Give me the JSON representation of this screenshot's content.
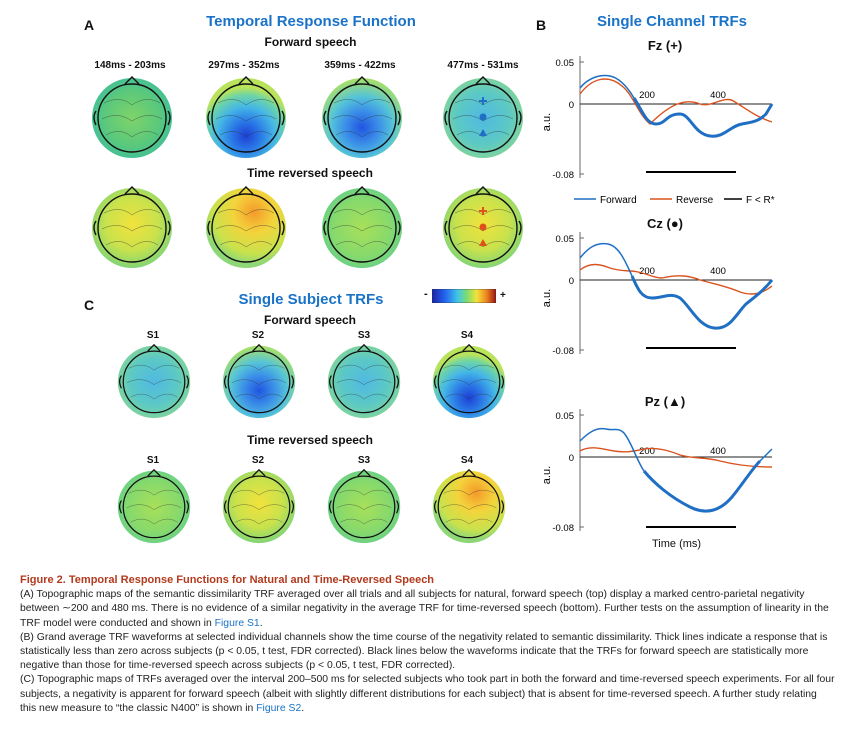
{
  "panel_a": {
    "letter": "A",
    "title": "Temporal Response Function",
    "forward_label": "Forward speech",
    "reversed_label": "Time reversed speech",
    "time_windows": [
      "148ms - 203ms",
      "297ms - 352ms",
      "359ms - 422ms",
      "477ms - 531ms"
    ],
    "colorbar": {
      "min_label": "-",
      "max_label": "+"
    }
  },
  "panel_b": {
    "letter": "B",
    "title": "Single Channel TRFs",
    "channels": [
      {
        "name": "Fz (+)"
      },
      {
        "name": "Cz (●)"
      },
      {
        "name": "Pz (▲)"
      }
    ],
    "y_ticks": [
      "0.05",
      "0",
      "-0.08"
    ],
    "x_ticks": [
      "200",
      "400"
    ],
    "ylabel": "a.u.",
    "xlabel": "Time (ms)",
    "legend": [
      "Forward",
      "Reverse",
      "F < R*"
    ],
    "colors": {
      "forward": "#1f6fc4",
      "reverse": "#d9531e",
      "sig": "#000000"
    }
  },
  "panel_c": {
    "letter": "C",
    "title": "Single Subject TRFs",
    "forward_label": "Forward speech",
    "reversed_label": "Time reversed speech",
    "subjects": [
      "S1",
      "S2",
      "S3",
      "S4"
    ]
  },
  "caption": {
    "title": "Figure 2.  Temporal Response Functions for Natural and Time-Reversed Speech",
    "pA_1": "(A) Topographic maps of the semantic dissimilarity TRF averaged over all trials and all subjects for natural, forward speech (top) display a marked centro-parietal negativity between ∼200 and 480 ms. There is no evidence of a similar negativity in the average TRF for time-reversed speech (bottom). Further tests on the assumption of linearity in the TRF model were conducted and shown in ",
    "pA_link": "Figure S1",
    "pA_2": ".",
    "pB": "(B) Grand average TRF waveforms at selected individual channels show the time course of the negativity related to semantic dissimilarity. Thick lines indicate a response that is statistically less than zero across subjects (p < 0.05, t test, FDR corrected). Black lines below the waveforms indicate that the TRFs for forward speech are statistically more negative than those for time-reversed speech across subjects (p < 0.05, t test, FDR corrected).",
    "pC_1": "(C) Topographic maps of TRFs averaged over the interval 200–500 ms for selected subjects who took part in both the forward and time-reversed speech experiments. For all four subjects, a negativity is apparent for forward speech (albeit with slightly different distributions for each subject) that is absent for time-reversed speech. A further study relating this new measure to “the classic N400” is shown in ",
    "pC_link": "Figure S2",
    "pC_2": "."
  }
}
